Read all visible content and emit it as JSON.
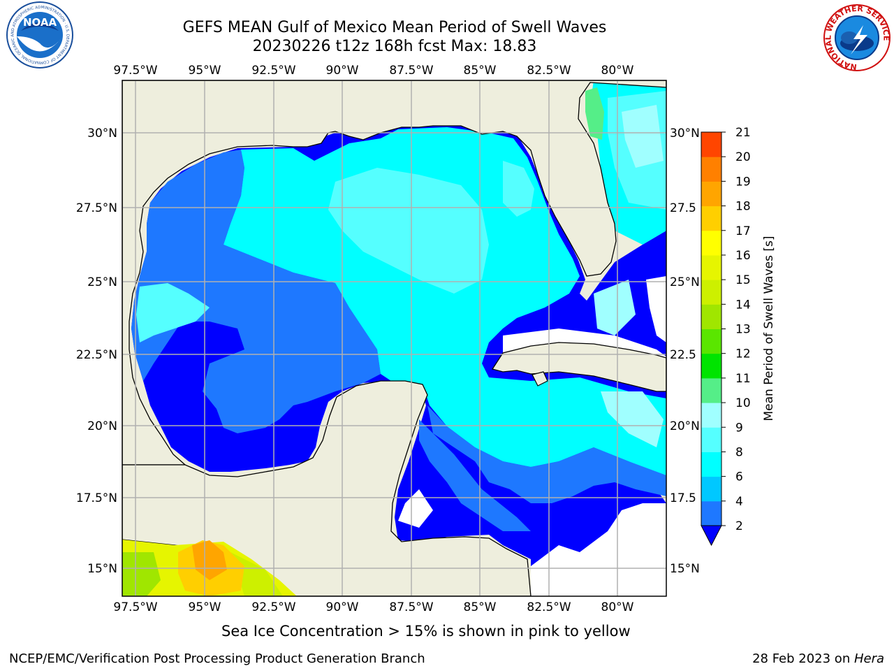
{
  "title": {
    "line1": "GEFS MEAN Gulf of Mexico Mean Period of Swell Waves",
    "line2": "20230226 t12z 168h fcst   Max: 18.83"
  },
  "lon_labels": [
    "97.5°W",
    "95°W",
    "92.5°W",
    "90°W",
    "87.5°W",
    "85°W",
    "82.5°W",
    "80°W"
  ],
  "lat_labels": [
    "30°N",
    "27.5°N",
    "25°N",
    "22.5°N",
    "20°N",
    "17.5°N",
    "15°N"
  ],
  "lat_labels_right": [
    "30°N",
    "27.5",
    "25°N",
    "22.5",
    "20°N",
    "17.5",
    "15°N"
  ],
  "colorbar": {
    "label": "Mean Period of Swell Waves [s]",
    "ticks": [
      "2",
      "4",
      "6",
      "8",
      "9",
      "10",
      "11",
      "12",
      "13",
      "14",
      "15",
      "16",
      "17",
      "18",
      "19",
      "20",
      "21"
    ],
    "colors": [
      "#1e78ff",
      "#00c8ff",
      "#00ffff",
      "#55ffff",
      "#a0ffff",
      "#55ee88",
      "#00e400",
      "#5ae600",
      "#a0e600",
      "#cdf000",
      "#e6f500",
      "#ffff00",
      "#ffcf00",
      "#ffa500",
      "#ff8000",
      "#ff4500",
      "#ff0000"
    ],
    "under_color": "#0000ff"
  },
  "note": "Sea Ice Concentration > 15% is shown in pink to yellow",
  "footer": {
    "left": "NCEP/EMC/Verification Post Processing Product Generation Branch",
    "right_prefix": "28 Feb 2023 on ",
    "right_host": "Hera"
  },
  "logos": {
    "noaa": "NOAA",
    "noaa_ring": "NATIONAL OCEANIC AND ATMOSPHERIC ADMINISTRATION · U.S. DEPARTMENT OF COMMERCE",
    "nws_ring": "NATIONAL WEATHER SERVICE"
  },
  "colors": {
    "land": "#eeeedd",
    "grid": "#b0b0b0",
    "sea_deep": "#0000ff",
    "sea_mid": "#1e78ff",
    "sea_light": "#00ffff",
    "sea_pale": "#55ffff"
  }
}
